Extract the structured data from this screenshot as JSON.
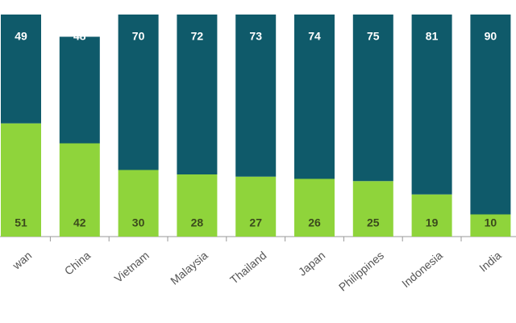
{
  "chart_data": {
    "type": "stacked-bar",
    "categories": [
      "wan",
      "China",
      "Vietnam",
      "Malaysia",
      "Thailand",
      "Japan",
      "Philippines",
      "Indonesia",
      "India"
    ],
    "series": [
      {
        "color": "#8fd43b",
        "values": [
          51,
          42,
          30,
          28,
          27,
          26,
          25,
          19,
          10
        ]
      },
      {
        "color": "#0f5a6a",
        "values": [
          49,
          48,
          70,
          72,
          73,
          74,
          75,
          81,
          90
        ]
      }
    ],
    "ylim": [
      0,
      100
    ]
  }
}
